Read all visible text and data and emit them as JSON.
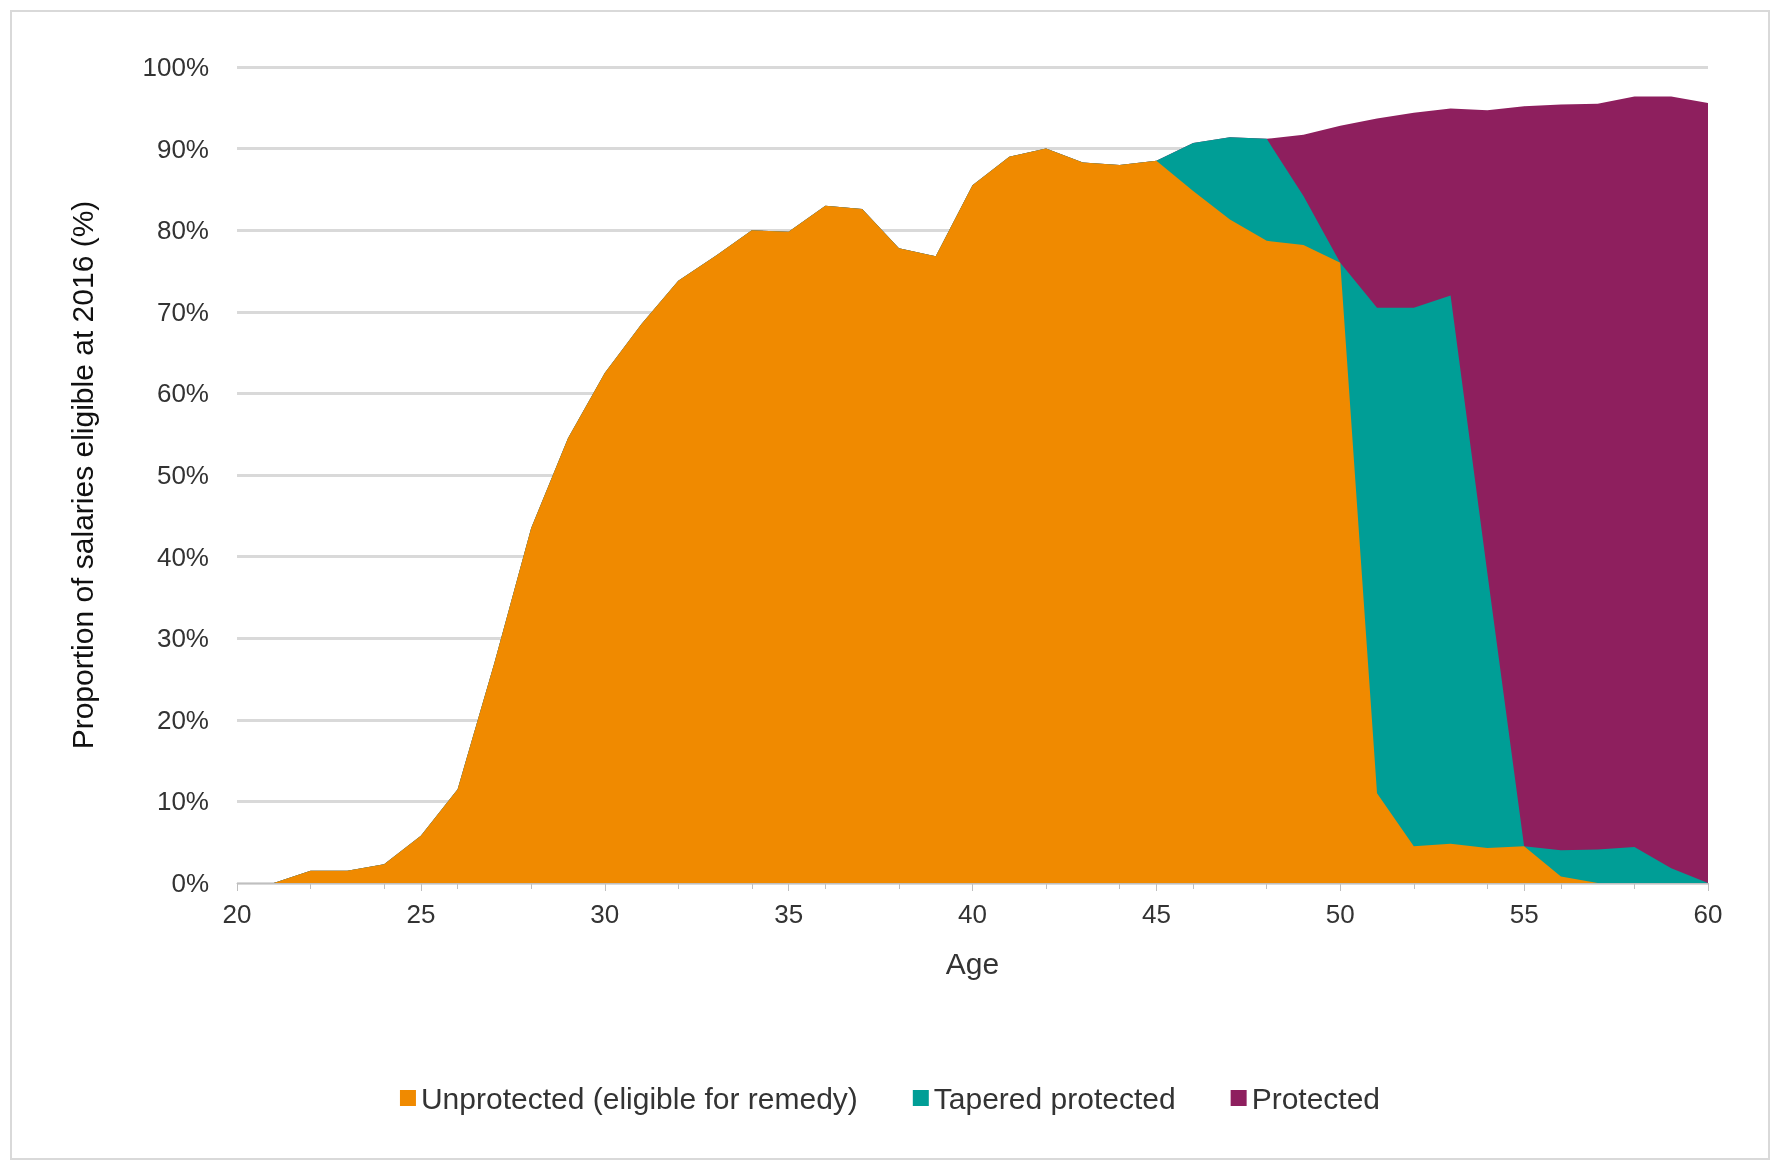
{
  "chart_data": {
    "type": "area",
    "stacked": true,
    "xlabel": "Age",
    "ylabel": "Proportion of salaries eligible at 2016 (%)",
    "x": [
      21,
      22,
      23,
      24,
      25,
      26,
      27,
      28,
      29,
      30,
      31,
      32,
      33,
      34,
      35,
      36,
      37,
      38,
      39,
      40,
      41,
      42,
      43,
      44,
      45,
      46,
      47,
      48,
      49,
      50,
      51,
      52,
      53,
      54,
      55,
      56,
      57,
      58,
      59,
      60
    ],
    "series": [
      {
        "name": "Unprotected (eligible for remedy)",
        "color": "#f08a00",
        "values": [
          0,
          1.5,
          1.5,
          2.3,
          5.8,
          11.5,
          27,
          43.5,
          54.5,
          62.5,
          68.5,
          73.8,
          76.8,
          80,
          79.8,
          83,
          82.6,
          77.8,
          76.8,
          85.5,
          89,
          90,
          88.3,
          88,
          88.5,
          84.8,
          81.3,
          78.7,
          78.2,
          76,
          11,
          4.5,
          4.8,
          4.3,
          4.5,
          0.8,
          0,
          0,
          0,
          0
        ]
      },
      {
        "name": "Tapered protected",
        "color": "#009e96",
        "values": [
          0,
          0,
          0,
          0,
          0,
          0,
          0,
          0,
          0,
          0,
          0,
          0,
          0,
          0,
          0,
          0,
          0,
          0,
          0,
          0,
          0,
          0,
          0,
          0,
          0,
          5.9,
          10.1,
          12.5,
          6,
          0,
          59.5,
          66,
          67.2,
          33.7,
          0,
          3.2,
          4.1,
          4.4,
          1.8,
          0
        ]
      },
      {
        "name": "Protected",
        "color": "#8e1f5e",
        "values": [
          0,
          0,
          0,
          0,
          0,
          0,
          0,
          0,
          0,
          0,
          0,
          0,
          0,
          0,
          0,
          0,
          0,
          0,
          0,
          0,
          0,
          0,
          0,
          0,
          0,
          0,
          0,
          0,
          7.5,
          16.8,
          23.2,
          23.9,
          22.9,
          56.7,
          90.7,
          91.4,
          91.4,
          92,
          94.6,
          95.6
        ]
      }
    ],
    "xlim": [
      20,
      60
    ],
    "xticks": [
      20,
      25,
      30,
      35,
      40,
      45,
      50,
      55,
      60
    ],
    "ylim": [
      0,
      100
    ],
    "yticks": [
      {
        "value": 0,
        "label": "0%"
      },
      {
        "value": 10,
        "label": "10%"
      },
      {
        "value": 20,
        "label": "20%"
      },
      {
        "value": 30,
        "label": "30%"
      },
      {
        "value": 40,
        "label": "40%"
      },
      {
        "value": 50,
        "label": "50%"
      },
      {
        "value": 60,
        "label": "60%"
      },
      {
        "value": 70,
        "label": "70%"
      },
      {
        "value": 80,
        "label": "80%"
      },
      {
        "value": 90,
        "label": "90%"
      },
      {
        "value": 100,
        "label": "100%"
      }
    ],
    "grid": "y",
    "legend": "bottom"
  }
}
